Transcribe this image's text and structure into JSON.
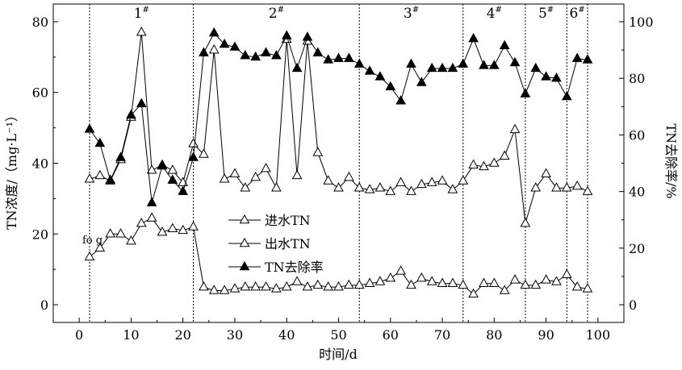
{
  "chart_data": {
    "type": "line",
    "x_label": "时间/d",
    "y_left_label": "TN浓度/（mg·L⁻¹）",
    "y_right_label": "TN去除率/%",
    "x_ticks": [
      "0",
      "10",
      "20",
      "30",
      "40",
      "50",
      "60",
      "70",
      "80",
      "90",
      "100"
    ],
    "y_left_ticks": [
      "0",
      "20",
      "40",
      "60",
      "80"
    ],
    "y_right_ticks": [
      "0",
      "20",
      "40",
      "60",
      "80",
      "100"
    ],
    "x_range": [
      -5,
      105
    ],
    "y_left_range": [
      -5,
      85
    ],
    "y_right_range": [
      -6.25,
      106.25
    ],
    "stray_label": "fo g",
    "phase_boundaries": [
      2,
      22,
      54,
      74,
      86,
      94,
      98
    ],
    "phases": [
      {
        "label": "1",
        "sup": "#",
        "x": 12
      },
      {
        "label": "2",
        "sup": "#",
        "x": 38
      },
      {
        "label": "3",
        "sup": "#",
        "x": 64
      },
      {
        "label": "4",
        "sup": "#",
        "x": 80
      },
      {
        "label": "5",
        "sup": "#",
        "x": 90
      },
      {
        "label": "6",
        "sup": "#",
        "x": 96
      }
    ],
    "series": [
      {
        "name": "进水TN",
        "axis": "left",
        "marker": "open-triangle",
        "x": [
          2,
          4,
          6,
          8,
          10,
          12,
          14,
          16,
          18,
          20,
          22,
          24,
          26,
          28,
          30,
          32,
          34,
          36,
          38,
          40,
          42,
          44,
          46,
          48,
          50,
          52,
          54,
          56,
          58,
          60,
          62,
          64,
          66,
          68,
          70,
          72,
          74,
          76,
          78,
          80,
          82,
          84,
          86,
          88,
          90,
          92,
          94,
          96,
          98
        ],
        "values": [
          35.5,
          36.5,
          35,
          41,
          53,
          77,
          38,
          39.5,
          38,
          34.5,
          45.5,
          42.5,
          72,
          35.5,
          37,
          33,
          36,
          38.5,
          33,
          75,
          36.5,
          74.5,
          43,
          35,
          33,
          36,
          33,
          32.5,
          33,
          32,
          34.5,
          32,
          34,
          34.5,
          35,
          32.5,
          35,
          39.5,
          39,
          40,
          42,
          49.5,
          23,
          33,
          37,
          33,
          33,
          33.5,
          32
        ]
      },
      {
        "name": "出水TN",
        "axis": "left",
        "marker": "open-triangle",
        "x": [
          2,
          4,
          6,
          8,
          10,
          12,
          14,
          16,
          18,
          20,
          22,
          24,
          26,
          28,
          30,
          32,
          34,
          36,
          38,
          40,
          42,
          44,
          46,
          48,
          50,
          52,
          54,
          56,
          58,
          60,
          62,
          64,
          66,
          68,
          70,
          72,
          74,
          76,
          78,
          80,
          82,
          84,
          86,
          88,
          90,
          92,
          94,
          96,
          98
        ],
        "values": [
          13.5,
          16,
          20,
          20,
          18,
          23,
          24.5,
          20.5,
          21.5,
          21,
          22,
          5,
          4,
          4,
          4.5,
          5,
          5,
          5,
          4.5,
          5,
          6.5,
          5,
          5.5,
          5,
          5,
          5.5,
          5.5,
          6,
          6.5,
          7.5,
          9.5,
          5.5,
          7.5,
          6.5,
          6,
          6,
          5.5,
          3,
          6,
          6,
          4,
          7,
          5.5,
          5.5,
          7,
          6.5,
          8.5,
          5,
          4.5
        ]
      },
      {
        "name": "TN去除率",
        "axis": "right",
        "marker": "filled-triangle",
        "x": [
          2,
          4,
          6,
          8,
          10,
          12,
          14,
          16,
          18,
          20,
          22,
          24,
          26,
          28,
          30,
          32,
          34,
          36,
          38,
          40,
          42,
          44,
          46,
          48,
          50,
          52,
          54,
          56,
          58,
          60,
          62,
          64,
          66,
          68,
          70,
          72,
          74,
          76,
          78,
          80,
          82,
          84,
          86,
          88,
          90,
          92,
          94,
          96,
          98
        ],
        "values": [
          62,
          57,
          44,
          52,
          67,
          71,
          36,
          49,
          44,
          40,
          52,
          89,
          96,
          92,
          91,
          88,
          87.5,
          89,
          88,
          95,
          83.5,
          94.5,
          89,
          86.5,
          87,
          87,
          85,
          82.5,
          80.5,
          77,
          72,
          85,
          78.5,
          83.5,
          83.5,
          83.5,
          85,
          94,
          84.5,
          84.5,
          91.5,
          85.5,
          74.5,
          83.5,
          80.5,
          80,
          73.5,
          87,
          86.5
        ]
      }
    ]
  }
}
